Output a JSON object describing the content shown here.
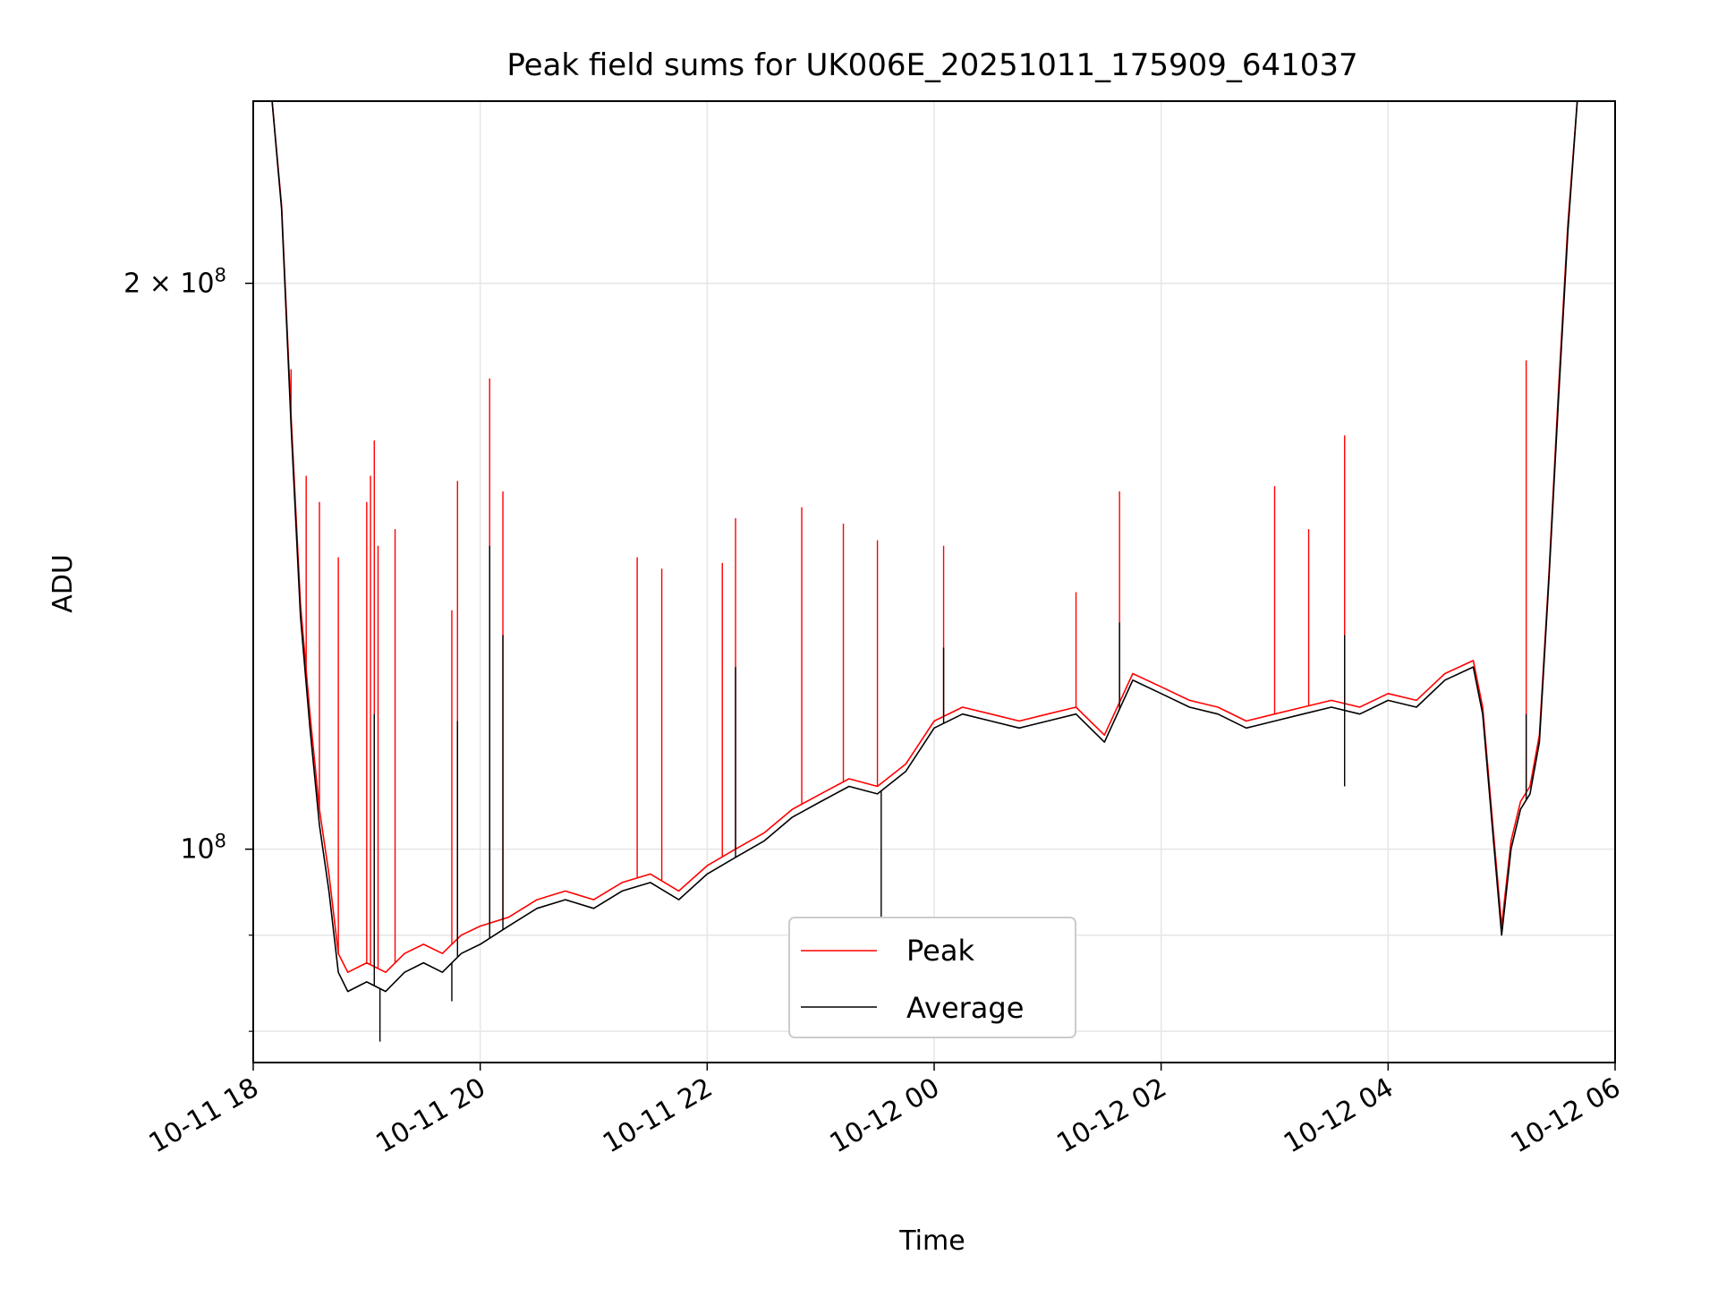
{
  "chart_data": {
    "type": "line",
    "title": "Peak field sums for UK006E_20251011_175909_641037",
    "xlabel": "Time",
    "ylabel": "ADU",
    "y_scale": "log",
    "ylim": [
      77000000,
      250000000
    ],
    "xlim": [
      "2025-10-11 18:00",
      "2025-10-12 06:00"
    ],
    "x_ticks": [
      {
        "at": "2025-10-11 18:00",
        "label": "10-11 18"
      },
      {
        "at": "2025-10-11 20:00",
        "label": "10-11 20"
      },
      {
        "at": "2025-10-11 22:00",
        "label": "10-11 22"
      },
      {
        "at": "2025-10-12 00:00",
        "label": "10-12 00"
      },
      {
        "at": "2025-10-12 02:00",
        "label": "10-12 02"
      },
      {
        "at": "2025-10-12 04:00",
        "label": "10-12 04"
      },
      {
        "at": "2025-10-12 06:00",
        "label": "10-12 06"
      }
    ],
    "y_major_ticks": [
      {
        "value": 100000000,
        "label_base": "10",
        "label_exp": "8"
      },
      {
        "value": 200000000,
        "label_base": "2 × 10",
        "label_exp": "8"
      }
    ],
    "y_minor_ticks": [
      80000000,
      90000000
    ],
    "grid": true,
    "legend_position": "lower center",
    "series": [
      {
        "name": "Peak",
        "color": "#ff0000",
        "points": [
          [
            "2025-10-11 18:10",
            250000000
          ],
          [
            "2025-10-11 18:15",
            220000000
          ],
          [
            "2025-10-11 18:20",
            170000000
          ],
          [
            "2025-10-11 18:25",
            135000000
          ],
          [
            "2025-10-11 18:30",
            118000000
          ],
          [
            "2025-10-11 18:35",
            105000000
          ],
          [
            "2025-10-11 18:40",
            97000000
          ],
          [
            "2025-10-11 18:45",
            88000000
          ],
          [
            "2025-10-11 18:50",
            86000000
          ],
          [
            "2025-10-11 19:00",
            87000000
          ],
          [
            "2025-10-11 19:10",
            86000000
          ],
          [
            "2025-10-11 19:20",
            88000000
          ],
          [
            "2025-10-11 19:30",
            89000000
          ],
          [
            "2025-10-11 19:40",
            88000000
          ],
          [
            "2025-10-11 19:50",
            90000000
          ],
          [
            "2025-10-11 20:00",
            91000000
          ],
          [
            "2025-10-11 20:15",
            92000000
          ],
          [
            "2025-10-11 20:30",
            94000000
          ],
          [
            "2025-10-11 20:45",
            95000000
          ],
          [
            "2025-10-11 21:00",
            94000000
          ],
          [
            "2025-10-11 21:15",
            96000000
          ],
          [
            "2025-10-11 21:30",
            97000000
          ],
          [
            "2025-10-11 21:45",
            95000000
          ],
          [
            "2025-10-11 22:00",
            98000000
          ],
          [
            "2025-10-11 22:15",
            100000000
          ],
          [
            "2025-10-11 22:30",
            102000000
          ],
          [
            "2025-10-11 22:45",
            105000000
          ],
          [
            "2025-10-11 23:00",
            107000000
          ],
          [
            "2025-10-11 23:15",
            109000000
          ],
          [
            "2025-10-11 23:30",
            108000000
          ],
          [
            "2025-10-11 23:45",
            111000000
          ],
          [
            "2025-10-12 00:00",
            117000000
          ],
          [
            "2025-10-12 00:15",
            119000000
          ],
          [
            "2025-10-12 00:30",
            118000000
          ],
          [
            "2025-10-12 00:45",
            117000000
          ],
          [
            "2025-10-12 01:00",
            118000000
          ],
          [
            "2025-10-12 01:15",
            119000000
          ],
          [
            "2025-10-12 01:30",
            115000000
          ],
          [
            "2025-10-12 01:45",
            124000000
          ],
          [
            "2025-10-12 02:00",
            122000000
          ],
          [
            "2025-10-12 02:15",
            120000000
          ],
          [
            "2025-10-12 02:30",
            119000000
          ],
          [
            "2025-10-12 02:45",
            117000000
          ],
          [
            "2025-10-12 03:00",
            118000000
          ],
          [
            "2025-10-12 03:15",
            119000000
          ],
          [
            "2025-10-12 03:30",
            120000000
          ],
          [
            "2025-10-12 03:45",
            119000000
          ],
          [
            "2025-10-12 04:00",
            121000000
          ],
          [
            "2025-10-12 04:15",
            120000000
          ],
          [
            "2025-10-12 04:30",
            124000000
          ],
          [
            "2025-10-12 04:45",
            126000000
          ],
          [
            "2025-10-12 04:50",
            119000000
          ],
          [
            "2025-10-12 04:55",
            104000000
          ],
          [
            "2025-10-12 05:00",
            91000000
          ],
          [
            "2025-10-12 05:05",
            101000000
          ],
          [
            "2025-10-12 05:10",
            106000000
          ],
          [
            "2025-10-12 05:15",
            108000000
          ],
          [
            "2025-10-12 05:20",
            115000000
          ],
          [
            "2025-10-12 05:25",
            140000000
          ],
          [
            "2025-10-12 05:30",
            175000000
          ],
          [
            "2025-10-12 05:35",
            215000000
          ],
          [
            "2025-10-12 05:40",
            250000000
          ]
        ],
        "spikes": [
          [
            "2025-10-11 18:20",
            180000000
          ],
          [
            "2025-10-11 18:28",
            158000000
          ],
          [
            "2025-10-11 18:35",
            153000000
          ],
          [
            "2025-10-11 18:45",
            143000000
          ],
          [
            "2025-10-11 19:00",
            153000000
          ],
          [
            "2025-10-11 19:02",
            158000000
          ],
          [
            "2025-10-11 19:04",
            165000000
          ],
          [
            "2025-10-11 19:06",
            145000000
          ],
          [
            "2025-10-11 19:15",
            148000000
          ],
          [
            "2025-10-11 19:45",
            134000000
          ],
          [
            "2025-10-11 19:48",
            157000000
          ],
          [
            "2025-10-11 20:05",
            178000000
          ],
          [
            "2025-10-11 20:12",
            155000000
          ],
          [
            "2025-10-11 21:23",
            143000000
          ],
          [
            "2025-10-11 21:36",
            141000000
          ],
          [
            "2025-10-11 22:08",
            142000000
          ],
          [
            "2025-10-11 22:15",
            150000000
          ],
          [
            "2025-10-11 22:50",
            152000000
          ],
          [
            "2025-10-11 23:12",
            149000000
          ],
          [
            "2025-10-11 23:30",
            146000000
          ],
          [
            "2025-10-12 00:05",
            145000000
          ],
          [
            "2025-10-12 01:15",
            137000000
          ],
          [
            "2025-10-12 01:38",
            155000000
          ],
          [
            "2025-10-12 03:00",
            156000000
          ],
          [
            "2025-10-12 03:18",
            148000000
          ],
          [
            "2025-10-12 03:37",
            166000000
          ],
          [
            "2025-10-12 05:13",
            182000000
          ]
        ]
      },
      {
        "name": "Average",
        "color": "#000000",
        "points": [
          [
            "2025-10-11 18:10",
            250000000
          ],
          [
            "2025-10-11 18:15",
            219000000
          ],
          [
            "2025-10-11 18:20",
            168000000
          ],
          [
            "2025-10-11 18:25",
            133000000
          ],
          [
            "2025-10-11 18:30",
            116000000
          ],
          [
            "2025-10-11 18:35",
            103000000
          ],
          [
            "2025-10-11 18:40",
            95000000
          ],
          [
            "2025-10-11 18:45",
            86000000
          ],
          [
            "2025-10-11 18:50",
            84000000
          ],
          [
            "2025-10-11 19:00",
            85000000
          ],
          [
            "2025-10-11 19:10",
            84000000
          ],
          [
            "2025-10-11 19:20",
            86000000
          ],
          [
            "2025-10-11 19:30",
            87000000
          ],
          [
            "2025-10-11 19:40",
            86000000
          ],
          [
            "2025-10-11 19:50",
            88000000
          ],
          [
            "2025-10-11 20:00",
            89000000
          ],
          [
            "2025-10-11 20:15",
            91000000
          ],
          [
            "2025-10-11 20:30",
            93000000
          ],
          [
            "2025-10-11 20:45",
            94000000
          ],
          [
            "2025-10-11 21:00",
            93000000
          ],
          [
            "2025-10-11 21:15",
            95000000
          ],
          [
            "2025-10-11 21:30",
            96000000
          ],
          [
            "2025-10-11 21:45",
            94000000
          ],
          [
            "2025-10-11 22:00",
            97000000
          ],
          [
            "2025-10-11 22:15",
            99000000
          ],
          [
            "2025-10-11 22:30",
            101000000
          ],
          [
            "2025-10-11 22:45",
            104000000
          ],
          [
            "2025-10-11 23:00",
            106000000
          ],
          [
            "2025-10-11 23:15",
            108000000
          ],
          [
            "2025-10-11 23:30",
            107000000
          ],
          [
            "2025-10-11 23:45",
            110000000
          ],
          [
            "2025-10-12 00:00",
            116000000
          ],
          [
            "2025-10-12 00:15",
            118000000
          ],
          [
            "2025-10-12 00:30",
            117000000
          ],
          [
            "2025-10-12 00:45",
            116000000
          ],
          [
            "2025-10-12 01:00",
            117000000
          ],
          [
            "2025-10-12 01:15",
            118000000
          ],
          [
            "2025-10-12 01:30",
            114000000
          ],
          [
            "2025-10-12 01:45",
            123000000
          ],
          [
            "2025-10-12 02:00",
            121000000
          ],
          [
            "2025-10-12 02:15",
            119000000
          ],
          [
            "2025-10-12 02:30",
            118000000
          ],
          [
            "2025-10-12 02:45",
            116000000
          ],
          [
            "2025-10-12 03:00",
            117000000
          ],
          [
            "2025-10-12 03:15",
            118000000
          ],
          [
            "2025-10-12 03:30",
            119000000
          ],
          [
            "2025-10-12 03:45",
            118000000
          ],
          [
            "2025-10-12 04:00",
            120000000
          ],
          [
            "2025-10-12 04:15",
            119000000
          ],
          [
            "2025-10-12 04:30",
            123000000
          ],
          [
            "2025-10-12 04:45",
            125000000
          ],
          [
            "2025-10-12 04:50",
            118000000
          ],
          [
            "2025-10-12 04:55",
            103000000
          ],
          [
            "2025-10-12 05:00",
            90000000
          ],
          [
            "2025-10-12 05:05",
            100000000
          ],
          [
            "2025-10-12 05:10",
            105000000
          ],
          [
            "2025-10-12 05:15",
            107000000
          ],
          [
            "2025-10-12 05:20",
            114000000
          ],
          [
            "2025-10-12 05:25",
            139000000
          ],
          [
            "2025-10-12 05:30",
            173000000
          ],
          [
            "2025-10-12 05:35",
            213000000
          ],
          [
            "2025-10-12 05:40",
            250000000
          ]
        ],
        "spikes": [
          [
            "2025-10-11 19:04",
            118000000
          ],
          [
            "2025-10-11 19:48",
            117000000
          ],
          [
            "2025-10-11 20:05",
            145000000
          ],
          [
            "2025-10-11 20:12",
            130000000
          ],
          [
            "2025-10-11 22:15",
            125000000
          ],
          [
            "2025-10-12 00:05",
            128000000
          ],
          [
            "2025-10-12 01:38",
            132000000
          ],
          [
            "2025-10-12 03:37",
            130000000
          ],
          [
            "2025-10-12 05:13",
            118000000
          ]
        ],
        "dips": [
          [
            "2025-10-11 19:07",
            79000000
          ],
          [
            "2025-10-11 19:45",
            83000000
          ],
          [
            "2025-10-11 23:32",
            91000000
          ],
          [
            "2025-10-12 03:37",
            108000000
          ]
        ]
      }
    ]
  }
}
